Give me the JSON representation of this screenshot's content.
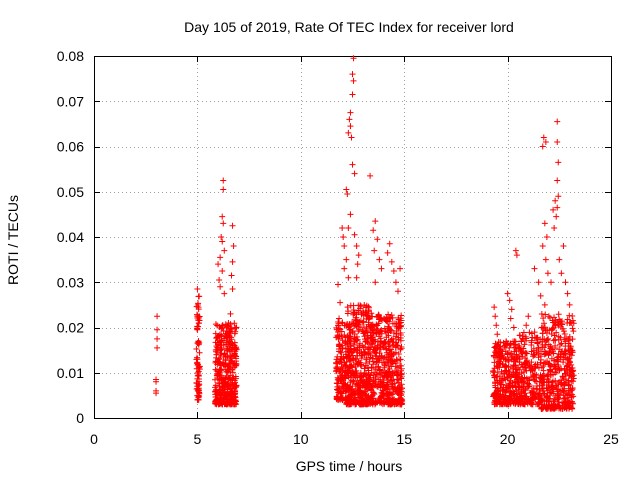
{
  "chart_data": {
    "type": "scatter",
    "title": "Day 105 of 2019, Rate Of TEC Index for receiver lord",
    "xlabel": "GPS time / hours",
    "ylabel": "ROTI / TECUs",
    "xlim": [
      0,
      25
    ],
    "ylim": [
      0,
      0.08
    ],
    "xticks": [
      0,
      5,
      10,
      15,
      20,
      25
    ],
    "yticks": [
      "0",
      "0.01",
      "0.02",
      "0.03",
      "0.04",
      "0.05",
      "0.06",
      "0.07",
      "0.08"
    ],
    "grid": true,
    "marker": "+",
    "color": "#ff0000",
    "series": [
      {
        "name": "ROTI",
        "points": [
          [
            3.0,
            0.0055
          ],
          [
            3.0,
            0.006
          ],
          [
            3.0,
            0.008
          ],
          [
            3.0,
            0.0085
          ],
          [
            3.05,
            0.0155
          ],
          [
            3.05,
            0.0175
          ],
          [
            3.05,
            0.0195
          ],
          [
            3.05,
            0.0225
          ],
          [
            5.0,
            0.0285
          ],
          [
            5.05,
            0.0245
          ],
          [
            5.0,
            0.0225
          ],
          [
            5.0,
            0.0195
          ],
          [
            5.05,
            0.0165
          ],
          [
            5.0,
            0.013
          ],
          [
            5.05,
            0.0095
          ],
          [
            5.0,
            0.0065
          ],
          [
            5.05,
            0.005
          ],
          [
            6.25,
            0.0525
          ],
          [
            6.25,
            0.0505
          ],
          [
            6.2,
            0.0445
          ],
          [
            6.25,
            0.043
          ],
          [
            6.15,
            0.04
          ],
          [
            6.2,
            0.039
          ],
          [
            6.3,
            0.037
          ],
          [
            6.1,
            0.0355
          ],
          [
            6.0,
            0.034
          ],
          [
            6.2,
            0.0325
          ],
          [
            6.05,
            0.0305
          ],
          [
            6.1,
            0.029
          ],
          [
            6.3,
            0.0275
          ],
          [
            6.7,
            0.0425
          ],
          [
            6.75,
            0.038
          ],
          [
            6.7,
            0.0345
          ],
          [
            6.65,
            0.0315
          ],
          [
            6.7,
            0.0285
          ],
          [
            6.6,
            0.023
          ],
          [
            6.5,
            0.021
          ],
          [
            11.8,
            0.0295
          ],
          [
            11.9,
            0.0255
          ],
          [
            11.85,
            0.022
          ],
          [
            11.8,
            0.019
          ],
          [
            11.85,
            0.016
          ],
          [
            12.0,
            0.042
          ],
          [
            12.05,
            0.04
          ],
          [
            12.1,
            0.038
          ],
          [
            12.2,
            0.035
          ],
          [
            12.1,
            0.033
          ],
          [
            12.3,
            0.031
          ],
          [
            12.2,
            0.0505
          ],
          [
            12.25,
            0.0495
          ],
          [
            12.4,
            0.045
          ],
          [
            12.3,
            0.042
          ],
          [
            12.4,
            0.0675
          ],
          [
            12.35,
            0.066
          ],
          [
            12.4,
            0.0645
          ],
          [
            12.3,
            0.063
          ],
          [
            12.45,
            0.062
          ],
          [
            12.5,
            0.056
          ],
          [
            12.6,
            0.054
          ],
          [
            12.55,
            0.0795
          ],
          [
            12.5,
            0.076
          ],
          [
            12.55,
            0.0745
          ],
          [
            12.5,
            0.0715
          ],
          [
            12.6,
            0.0405
          ],
          [
            12.7,
            0.038
          ],
          [
            12.8,
            0.036
          ],
          [
            12.75,
            0.034
          ],
          [
            12.7,
            0.031
          ],
          [
            13.35,
            0.0535
          ],
          [
            13.6,
            0.0435
          ],
          [
            13.5,
            0.0415
          ],
          [
            13.7,
            0.0395
          ],
          [
            13.55,
            0.037
          ],
          [
            13.8,
            0.035
          ],
          [
            13.9,
            0.033
          ],
          [
            13.6,
            0.03
          ],
          [
            14.3,
            0.0385
          ],
          [
            14.2,
            0.0365
          ],
          [
            14.4,
            0.0345
          ],
          [
            14.5,
            0.0325
          ],
          [
            14.6,
            0.03
          ],
          [
            14.8,
            0.033
          ],
          [
            14.7,
            0.028
          ],
          [
            19.35,
            0.0245
          ],
          [
            19.4,
            0.0225
          ],
          [
            19.45,
            0.0205
          ],
          [
            19.5,
            0.0185
          ],
          [
            20.0,
            0.0275
          ],
          [
            20.1,
            0.026
          ],
          [
            20.2,
            0.024
          ],
          [
            20.15,
            0.022
          ],
          [
            20.3,
            0.02
          ],
          [
            20.4,
            0.037
          ],
          [
            20.45,
            0.036
          ],
          [
            21.0,
            0.0225
          ],
          [
            20.9,
            0.0205
          ],
          [
            21.3,
            0.033
          ],
          [
            21.5,
            0.03
          ],
          [
            21.6,
            0.027
          ],
          [
            21.8,
            0.025
          ],
          [
            21.75,
            0.062
          ],
          [
            21.85,
            0.061
          ],
          [
            21.7,
            0.06
          ],
          [
            21.8,
            0.043
          ],
          [
            21.9,
            0.04
          ],
          [
            21.7,
            0.038
          ],
          [
            21.85,
            0.035
          ],
          [
            21.95,
            0.032
          ],
          [
            22.1,
            0.03
          ],
          [
            22.3,
            0.048
          ],
          [
            22.2,
            0.046
          ],
          [
            22.35,
            0.0445
          ],
          [
            22.25,
            0.042
          ],
          [
            22.4,
            0.0655
          ],
          [
            22.4,
            0.061
          ],
          [
            22.45,
            0.0565
          ],
          [
            22.4,
            0.0525
          ],
          [
            22.45,
            0.049
          ],
          [
            22.4,
            0.0465
          ],
          [
            22.5,
            0.035
          ],
          [
            22.6,
            0.032
          ],
          [
            22.7,
            0.038
          ],
          [
            22.8,
            0.03
          ],
          [
            22.9,
            0.0275
          ],
          [
            23.0,
            0.025
          ],
          [
            23.1,
            0.021
          ]
        ],
        "dense_bands": [
          {
            "x": [
              4.95,
              5.12
            ],
            "y": [
              0.004,
              0.027
            ],
            "count": 70
          },
          {
            "x": [
              5.85,
              6.9
            ],
            "y": [
              0.003,
              0.021
            ],
            "count": 400
          },
          {
            "x": [
              11.7,
              12.2
            ],
            "y": [
              0.004,
              0.022
            ],
            "count": 140
          },
          {
            "x": [
              12.2,
              13.5
            ],
            "y": [
              0.003,
              0.025
            ],
            "count": 480
          },
          {
            "x": [
              13.5,
              14.9
            ],
            "y": [
              0.003,
              0.023
            ],
            "count": 420
          },
          {
            "x": [
              19.3,
              20.5
            ],
            "y": [
              0.003,
              0.017
            ],
            "count": 320
          },
          {
            "x": [
              20.5,
              21.6
            ],
            "y": [
              0.003,
              0.019
            ],
            "count": 240
          },
          {
            "x": [
              21.6,
              23.2
            ],
            "y": [
              0.002,
              0.023
            ],
            "count": 420
          }
        ]
      }
    ]
  }
}
